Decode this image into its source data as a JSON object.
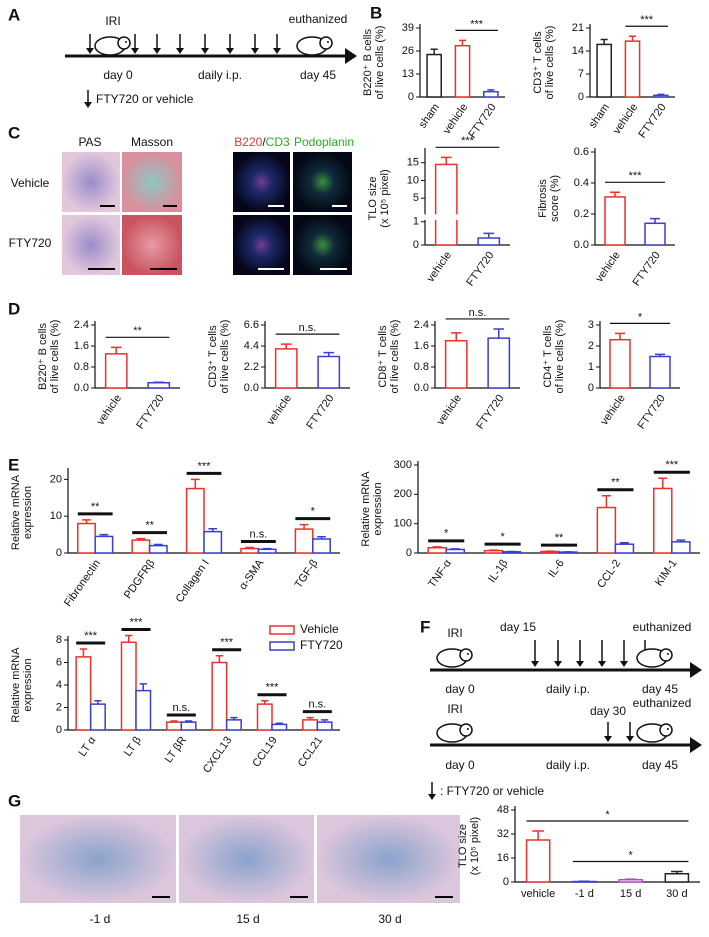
{
  "panel_labels": [
    "A",
    "B",
    "C",
    "D",
    "E",
    "F",
    "G"
  ],
  "timeline_A": {
    "injury": "IRI",
    "end": "euthanized",
    "start_day": "day 0",
    "treatment": "daily i.p.",
    "end_day": "day 45",
    "legend": "FTY720 or vehicle"
  },
  "timeline_F": {
    "schedules": [
      {
        "injury": "IRI",
        "start": "day 15",
        "end": "euthanized",
        "start_day": "day 0",
        "treatment": "daily i.p.",
        "end_day": "day 45"
      },
      {
        "injury": "IRI",
        "start": "day 30",
        "end": "euthanized",
        "start_day": "day 0",
        "treatment": "daily i.p.",
        "end_day": "day 45"
      }
    ],
    "legend": ": FTY720 or vehicle"
  },
  "images_C": {
    "columns": [
      "PAS",
      "Masson"
    ],
    "stain_b220": "B220",
    "stain_sep": "/",
    "stain_cd3": "CD3",
    "stain_podo": "Podoplanin",
    "rows": [
      "Vehicle",
      "FTY720"
    ]
  },
  "images_G": {
    "labels": [
      "-1 d",
      "15 d",
      "30 d"
    ]
  },
  "chart_data": [
    {
      "type": "bar",
      "y_label": [
        "B220⁺ B cells",
        "of live cells (%)"
      ],
      "categories": [
        "sham",
        "vehicle",
        "FTY720"
      ],
      "values": [
        24,
        29,
        3
      ],
      "errors": [
        3,
        3,
        1
      ],
      "colors": [
        "#222222",
        "#e8322b",
        "#3a3fd0"
      ],
      "ylim": [
        0,
        39
      ],
      "yticks": [
        0,
        13,
        26,
        39
      ],
      "significance": [
        {
          "text": "***",
          "bars": [
            1,
            2
          ]
        }
      ]
    },
    {
      "type": "bar",
      "y_label": [
        "CD3⁺ T cells",
        "of live cells (%)"
      ],
      "categories": [
        "sham",
        "vehicle",
        "FTY720"
      ],
      "values": [
        16,
        17,
        0.5
      ],
      "errors": [
        1.5,
        1.5,
        0.3
      ],
      "colors": [
        "#222222",
        "#e8322b",
        "#3a3fd0"
      ],
      "ylim": [
        0,
        21
      ],
      "yticks": [
        0,
        7,
        14,
        21
      ],
      "significance": [
        {
          "text": "***",
          "bars": [
            1,
            2
          ]
        }
      ]
    },
    {
      "type": "bar",
      "y_label": [
        "TLO size",
        "(x 10⁵ pixel)"
      ],
      "categories": [
        "vehicle",
        "FTY720"
      ],
      "values": [
        14.5,
        0.3
      ],
      "errors": [
        2,
        0.2
      ],
      "colors": [
        "#e8322b",
        "#3a3fd0"
      ],
      "axis_break": true,
      "ylim": [
        0,
        18
      ],
      "yticks": [
        0,
        1,
        5,
        10,
        15
      ],
      "significance": [
        {
          "text": "***",
          "bars": [
            0,
            1
          ]
        }
      ]
    },
    {
      "type": "bar",
      "y_label": [
        "Fibrosis",
        "score (%)"
      ],
      "categories": [
        "vehicle",
        "FTY720"
      ],
      "values": [
        0.31,
        0.14
      ],
      "errors": [
        0.03,
        0.03
      ],
      "colors": [
        "#e8322b",
        "#3a3fd0"
      ],
      "ylim": [
        0,
        0.6
      ],
      "yticks": [
        {
          "value": 0,
          "label": "0.0"
        },
        {
          "value": 0.2,
          "label": "0.2"
        },
        {
          "value": 0.4,
          "label": "0.4"
        },
        {
          "value": 0.6,
          "label": "0.6"
        }
      ],
      "significance": [
        {
          "text": "***",
          "bars": [
            0,
            1
          ]
        }
      ]
    },
    {
      "type": "bar",
      "y_label": [
        "B220⁺ B cells",
        "of live cells (%)"
      ],
      "categories": [
        "vehicle",
        "FTY720"
      ],
      "values": [
        1.3,
        0.2
      ],
      "errors": [
        0.25,
        0.02
      ],
      "colors": [
        "#e8322b",
        "#3a3fd0"
      ],
      "ylim": [
        0,
        2.4
      ],
      "yticks": [
        {
          "value": 0,
          "label": "0.0"
        },
        {
          "value": 0.8,
          "label": "0.8"
        },
        {
          "value": 1.6,
          "label": "1.6"
        },
        {
          "value": 2.4,
          "label": "2.4"
        }
      ],
      "significance": [
        {
          "text": "**",
          "bars": [
            0,
            1
          ]
        }
      ]
    },
    {
      "type": "bar",
      "y_label": [
        "CD3⁺ T cells",
        "of live cells (%)"
      ],
      "categories": [
        "vehicle",
        "FTY720"
      ],
      "values": [
        4.1,
        3.3
      ],
      "errors": [
        0.5,
        0.4
      ],
      "colors": [
        "#e8322b",
        "#3a3fd0"
      ],
      "ylim": [
        0,
        6.6
      ],
      "yticks": [
        {
          "value": 0,
          "label": "0.0"
        },
        {
          "value": 2.2,
          "label": "2.2"
        },
        {
          "value": 4.4,
          "label": "4.4"
        },
        {
          "value": 6.6,
          "label": "6.6"
        }
      ],
      "significance": [
        {
          "text": "n.s.",
          "bars": [
            0,
            1
          ]
        }
      ]
    },
    {
      "type": "bar",
      "y_label": [
        "CD8⁺ T cells",
        "of live cells (%)"
      ],
      "categories": [
        "vehicle",
        "FTY720"
      ],
      "values": [
        1.8,
        1.9
      ],
      "errors": [
        0.3,
        0.35
      ],
      "colors": [
        "#e8322b",
        "#3a3fd0"
      ],
      "ylim": [
        0,
        2.4
      ],
      "yticks": [
        {
          "value": 0,
          "label": "0.0"
        },
        {
          "value": 0.8,
          "label": "0.8"
        },
        {
          "value": 1.6,
          "label": "1.6"
        },
        {
          "value": 2.4,
          "label": "2.4"
        }
      ],
      "significance": [
        {
          "text": "n.s.",
          "bars": [
            0,
            1
          ]
        }
      ]
    },
    {
      "type": "bar",
      "y_label": [
        "CD4⁺ T cells",
        "of live cells (%)"
      ],
      "categories": [
        "vehicle",
        "FTY720"
      ],
      "values": [
        2.3,
        1.5
      ],
      "errors": [
        0.3,
        0.1
      ],
      "colors": [
        "#e8322b",
        "#3a3fd0"
      ],
      "ylim": [
        0,
        3
      ],
      "yticks": [
        0,
        1,
        2,
        3
      ],
      "significance": [
        {
          "text": "*",
          "bars": [
            0,
            1
          ]
        }
      ]
    },
    {
      "type": "grouped_bar",
      "y_label": [
        "Relative mRNA",
        "expression"
      ],
      "categories": [
        "Fibronectin",
        "PDGFRβ",
        "Collagen I",
        "α-SMA",
        "TGF-β"
      ],
      "series": [
        {
          "color": "#e8322b",
          "values": [
            8,
            3.5,
            17.5,
            1.2,
            6.5
          ],
          "errors": [
            1,
            0.4,
            2.5,
            0.3,
            1.2
          ]
        },
        {
          "color": "#3a3fd0",
          "values": [
            4.5,
            2,
            5.8,
            1,
            3.8
          ],
          "errors": [
            0.5,
            0.3,
            0.8,
            0.2,
            0.6
          ]
        }
      ],
      "significance": [
        "**",
        "**",
        "***",
        "n.s.",
        "*"
      ],
      "ylim": [
        0,
        22
      ],
      "yticks": [
        0,
        10,
        20
      ]
    },
    {
      "type": "grouped_bar",
      "y_label": [
        "Relative mRNA",
        "expression"
      ],
      "categories": [
        "TNF-α",
        "IL-1β",
        "IL-6",
        "CCL-2",
        "KIM-1"
      ],
      "series": [
        {
          "color": "#e8322b",
          "values": [
            18,
            8,
            5,
            155,
            220
          ],
          "errors": [
            3,
            2,
            1.5,
            40,
            35
          ]
        },
        {
          "color": "#3a3fd0",
          "values": [
            12,
            4,
            3,
            30,
            38
          ],
          "errors": [
            2,
            1,
            1,
            5,
            6
          ]
        }
      ],
      "significance": [
        "*",
        "*",
        "**",
        "**",
        "***"
      ],
      "ylim": [
        0,
        300
      ],
      "yticks": [
        0,
        100,
        200,
        300
      ]
    },
    {
      "type": "grouped_bar",
      "y_label": [
        "Relative mRNA",
        "expression"
      ],
      "categories": [
        "LT α",
        "LT β",
        "LT βR",
        "CXCL13",
        "CCL19",
        "CCL21"
      ],
      "series": [
        {
          "name": "Vehicle",
          "color": "#e8322b",
          "values": [
            6.5,
            7.8,
            0.7,
            6,
            2.3,
            0.9
          ],
          "errors": [
            0.7,
            0.6,
            0.1,
            0.6,
            0.3,
            0.2
          ]
        },
        {
          "name": "FTY720",
          "color": "#3a3fd0",
          "values": [
            2.3,
            3.5,
            0.7,
            0.9,
            0.5,
            0.7
          ],
          "errors": [
            0.3,
            0.6,
            0.1,
            0.2,
            0.1,
            0.2
          ]
        }
      ],
      "significance": [
        "***",
        "***",
        "n.s.",
        "***",
        "***",
        "n.s."
      ],
      "legend": "upper-right",
      "ylim": [
        0,
        8
      ],
      "yticks": [
        0,
        2,
        4,
        6,
        8
      ]
    },
    {
      "type": "bar",
      "y_label": [
        "TLO size",
        "(x 10⁵ pixel)"
      ],
      "categories": [
        "vehicle",
        "-1 d",
        "15 d",
        "30 d"
      ],
      "values": [
        28,
        0.3,
        1.5,
        5.5
      ],
      "errors": [
        6,
        0.2,
        0.4,
        1.5
      ],
      "colors": [
        "#e8322b",
        "#3a3fd0",
        "#b050c0",
        "#222222"
      ],
      "ylim": [
        0,
        48
      ],
      "yticks": [
        0,
        16,
        32,
        48
      ],
      "significance": [
        {
          "text": "*",
          "bars": [
            0,
            3
          ]
        },
        {
          "text": "*",
          "bars": [
            1,
            3
          ]
        }
      ]
    }
  ]
}
